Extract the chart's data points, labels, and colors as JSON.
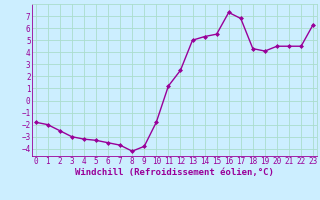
{
  "x": [
    0,
    1,
    2,
    3,
    4,
    5,
    6,
    7,
    8,
    9,
    10,
    11,
    12,
    13,
    14,
    15,
    16,
    17,
    18,
    19,
    20,
    21,
    22,
    23
  ],
  "y": [
    -1.8,
    -2.0,
    -2.5,
    -3.0,
    -3.2,
    -3.3,
    -3.5,
    -3.7,
    -4.2,
    -3.8,
    -1.8,
    1.2,
    2.5,
    5.0,
    5.3,
    5.5,
    7.3,
    6.8,
    4.3,
    4.1,
    4.5,
    4.5,
    4.5,
    6.3
  ],
  "line_color": "#990099",
  "marker": "D",
  "marker_size": 2.0,
  "bg_color": "#cceeff",
  "grid_color": "#aaddcc",
  "xlabel": "Windchill (Refroidissement éolien,°C)",
  "xlabel_color": "#990099",
  "tick_color": "#990099",
  "ylim": [
    -4.6,
    8.0
  ],
  "xlim": [
    -0.3,
    23.3
  ],
  "yticks": [
    -4,
    -3,
    -2,
    -1,
    0,
    1,
    2,
    3,
    4,
    5,
    6,
    7
  ],
  "xticks": [
    0,
    1,
    2,
    3,
    4,
    5,
    6,
    7,
    8,
    9,
    10,
    11,
    12,
    13,
    14,
    15,
    16,
    17,
    18,
    19,
    20,
    21,
    22,
    23
  ],
  "tick_fontsize": 5.5,
  "xlabel_fontsize": 6.5,
  "line_width": 1.0
}
